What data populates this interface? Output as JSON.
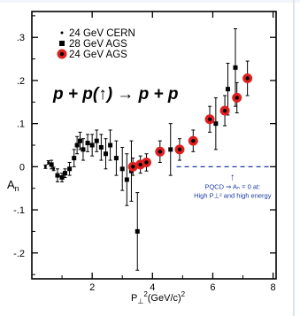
{
  "chart_data": {
    "type": "scatter",
    "title": "",
    "xlabel": "P⊥²(GeV/c)²",
    "ylabel": "An",
    "xlim": [
      0,
      8.1
    ],
    "ylim": [
      -0.26,
      0.36
    ],
    "x_ticks": [
      2,
      4,
      6,
      8
    ],
    "x_tick_labels": [
      "2",
      "4",
      "6",
      "8"
    ],
    "y_ticks": [
      0.3,
      0.2,
      0.1,
      0,
      -0.1,
      -0.2
    ],
    "y_tick_labels": [
      ".3",
      ".2",
      ".1",
      "0",
      "-.1",
      "-.2"
    ],
    "grid": false,
    "legend_position": "top-left",
    "equation": "p + p(↑) → p + p",
    "annotation": {
      "arrow": "↑",
      "line1": "PQCD ⇒ Aₙ = 0 at:",
      "line2": "High P⊥² and high energy",
      "dashed_line_value": 0,
      "dashed_line_from_x": 4.8
    },
    "series": [
      {
        "name": "24 GeV CERN",
        "marker": "dot",
        "color": "#000000",
        "points": [
          {
            "x": 0.45,
            "y": 0.0,
            "err": 0.004
          },
          {
            "x": 0.55,
            "y": 0.01,
            "err": 0.004
          },
          {
            "x": 0.72,
            "y": -0.005,
            "err": 0.004
          }
        ]
      },
      {
        "name": "28 GeV AGS",
        "marker": "square",
        "color": "#000000",
        "points": [
          {
            "x": 0.65,
            "y": 0.005,
            "err": 0.01
          },
          {
            "x": 0.85,
            "y": -0.02,
            "err": 0.015
          },
          {
            "x": 1.0,
            "y": -0.025,
            "err": 0.01
          },
          {
            "x": 1.1,
            "y": -0.015,
            "err": 0.01
          },
          {
            "x": 1.25,
            "y": -0.005,
            "err": 0.015
          },
          {
            "x": 1.4,
            "y": 0.02,
            "err": 0.02
          },
          {
            "x": 1.5,
            "y": 0.05,
            "err": 0.02
          },
          {
            "x": 1.6,
            "y": 0.06,
            "err": 0.02
          },
          {
            "x": 1.7,
            "y": 0.04,
            "err": 0.025
          },
          {
            "x": 1.85,
            "y": 0.055,
            "err": 0.02
          },
          {
            "x": 2.0,
            "y": 0.05,
            "err": 0.025
          },
          {
            "x": 2.15,
            "y": 0.06,
            "err": 0.025
          },
          {
            "x": 2.3,
            "y": 0.045,
            "err": 0.03
          },
          {
            "x": 2.45,
            "y": 0.03,
            "err": 0.035
          },
          {
            "x": 2.6,
            "y": 0.05,
            "err": 0.035
          },
          {
            "x": 2.8,
            "y": 0.02,
            "err": 0.04
          },
          {
            "x": 3.0,
            "y": -0.005,
            "err": 0.05
          },
          {
            "x": 3.15,
            "y": -0.03,
            "err": 0.06
          },
          {
            "x": 3.3,
            "y": -0.01,
            "err": 0.07
          },
          {
            "x": 3.5,
            "y": -0.15,
            "err": 0.09
          },
          {
            "x": 4.6,
            "y": 0.04,
            "err": 0.06
          },
          {
            "x": 6.1,
            "y": 0.1,
            "err": 0.06
          },
          {
            "x": 6.5,
            "y": 0.18,
            "err": 0.06
          },
          {
            "x": 6.75,
            "y": 0.23,
            "err": 0.09
          }
        ]
      },
      {
        "name": "24 GeV AGS",
        "marker": "red-circle",
        "color": "#e02020",
        "points": [
          {
            "x": 3.35,
            "y": 0.0,
            "err": 0.02
          },
          {
            "x": 3.6,
            "y": 0.005,
            "err": 0.02
          },
          {
            "x": 3.8,
            "y": 0.01,
            "err": 0.02
          },
          {
            "x": 4.25,
            "y": 0.035,
            "err": 0.025
          },
          {
            "x": 4.9,
            "y": 0.04,
            "err": 0.025
          },
          {
            "x": 5.35,
            "y": 0.06,
            "err": 0.025
          },
          {
            "x": 5.9,
            "y": 0.11,
            "err": 0.03
          },
          {
            "x": 6.4,
            "y": 0.13,
            "err": 0.035
          },
          {
            "x": 6.8,
            "y": 0.16,
            "err": 0.035
          },
          {
            "x": 7.15,
            "y": 0.205,
            "err": 0.04
          }
        ]
      }
    ]
  },
  "colors": {
    "axis": "#000000",
    "marker_fill": "#e02020",
    "annotation": "#1f3aa6",
    "background": "#ffffff"
  }
}
